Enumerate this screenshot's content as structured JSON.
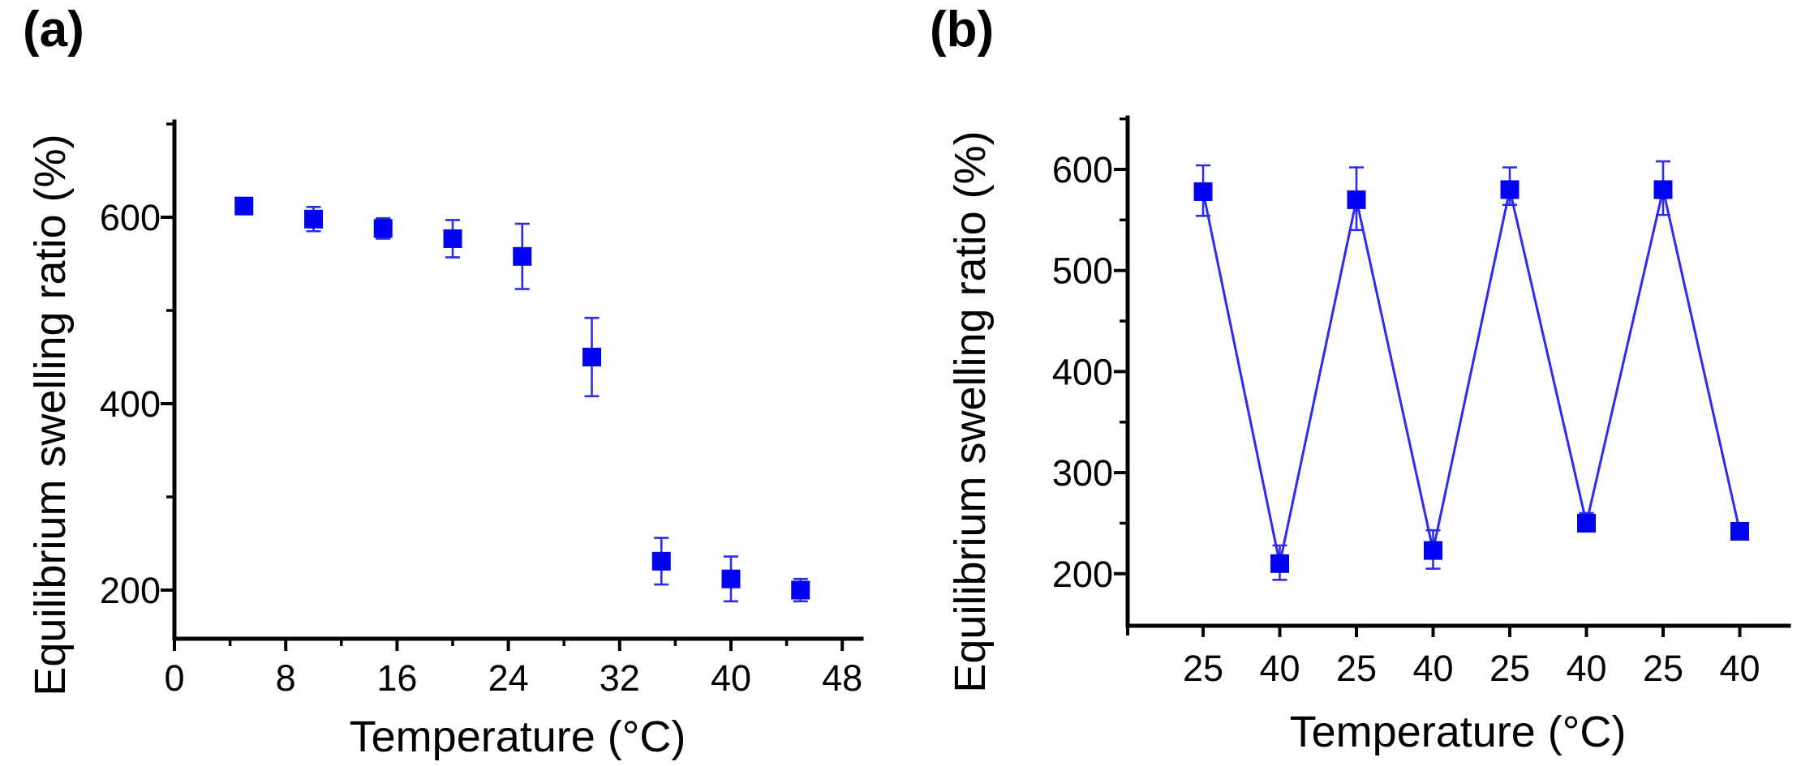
{
  "figure": {
    "background": "#ffffff"
  },
  "panels": [
    {
      "tag": "(a)",
      "ylabel": "Equilibrium swelling ratio (%)",
      "xlabel": "Temperature (°C)"
    },
    {
      "tag": "(b)",
      "ylabel": "Equilibrium swelling ratio (%)",
      "xlabel": "Temperature (°C)"
    }
  ],
  "colors": {
    "marker": "#0000f5",
    "stroke": "#2a2af0",
    "axis": "#000000",
    "text": "#000000"
  },
  "chart_data": [
    {
      "panel": "a",
      "type": "scatter",
      "title": "",
      "xlabel": "Temperature (°C)",
      "ylabel": "Equilibrium swelling ratio (%)",
      "x": [
        5,
        10,
        15,
        20,
        25,
        30,
        35,
        40,
        45
      ],
      "y": [
        612,
        598,
        588,
        577,
        558,
        450,
        231,
        212,
        200
      ],
      "yerr": [
        4,
        13,
        11,
        20,
        35,
        42,
        25,
        24,
        12
      ],
      "xlim": [
        0,
        49.5
      ],
      "ylim": [
        150,
        700
      ],
      "xticks_major": [
        0,
        8,
        16,
        24,
        32,
        40,
        48
      ],
      "xticks_minor": [
        4,
        12,
        20,
        28,
        36,
        44
      ],
      "yticks_major": [
        200,
        400,
        600
      ],
      "yticks_minor": [
        300,
        500,
        700
      ],
      "marker": "square",
      "line": false,
      "grid": false,
      "legend": null
    },
    {
      "panel": "b",
      "type": "line",
      "title": "",
      "xlabel": "Temperature (°C)",
      "ylabel": "Equilibrium swelling ratio (%)",
      "categories": [
        "25",
        "40",
        "25",
        "40",
        "25",
        "40",
        "25",
        "40"
      ],
      "y": [
        578,
        210,
        570,
        223,
        580,
        250,
        580,
        242
      ],
      "yerr_up": [
        26,
        18,
        32,
        20,
        22,
        10,
        28,
        8
      ],
      "yerr_down": [
        24,
        16,
        30,
        18,
        15,
        8,
        25,
        6
      ],
      "ylim": [
        150,
        650
      ],
      "yticks_major": [
        200,
        300,
        400,
        500,
        600
      ],
      "yticks_minor": [
        250,
        350,
        450,
        550,
        650
      ],
      "marker": "square",
      "line": true,
      "grid": false,
      "legend": null
    }
  ]
}
